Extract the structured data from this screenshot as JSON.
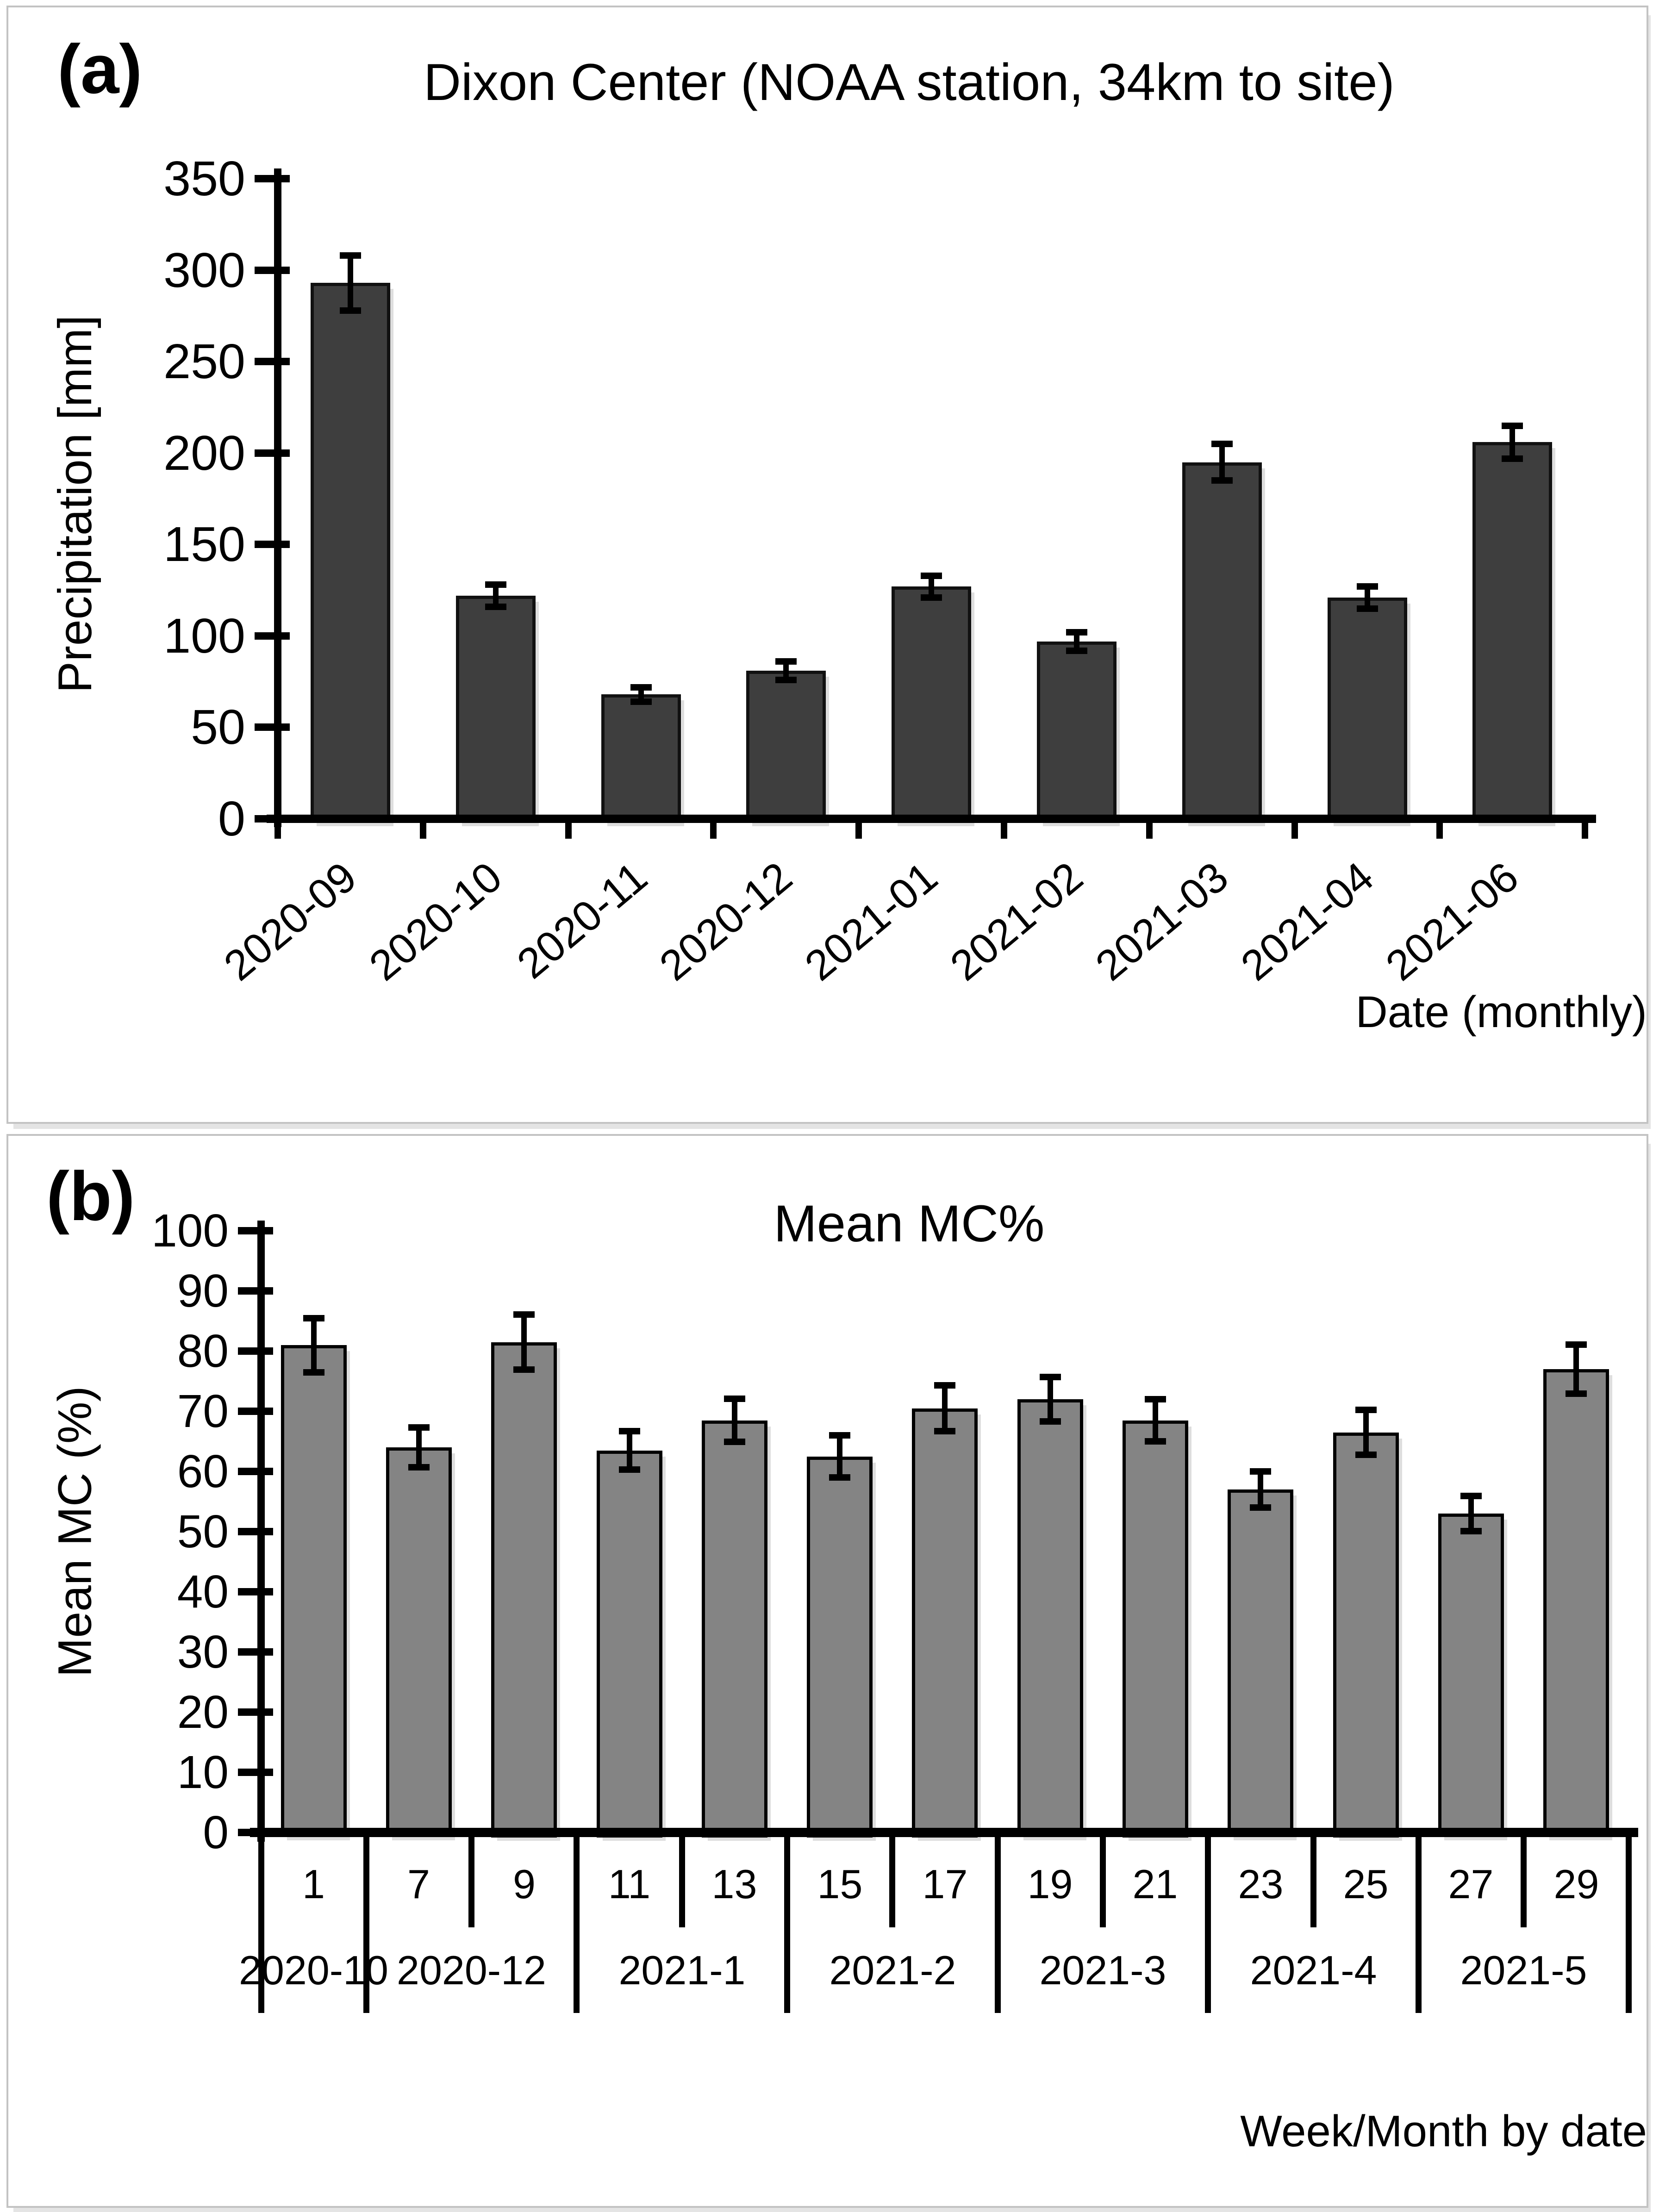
{
  "chart_data": [
    {
      "panel_label": "(a)",
      "type": "bar",
      "title": "Dixon Center (NOAA station, 34km to site)",
      "xlabel": "Date (monthly)",
      "ylabel": "Precipitation [mm]",
      "ylim": [
        0,
        350
      ],
      "ytick_step": 50,
      "ytick_labels": [
        "0",
        "50",
        "100",
        "150",
        "200",
        "250",
        "300",
        "350"
      ],
      "grid": false,
      "legend": "none",
      "categories": [
        "2020-09",
        "2020-10",
        "2020-11",
        "2020-12",
        "2021-01",
        "2021-02",
        "2021-03",
        "2021-04",
        "2021-06"
      ],
      "values": [
        293,
        122,
        68,
        81,
        127,
        97,
        195,
        121,
        206
      ],
      "error_bars": [
        15,
        6,
        4,
        5,
        6,
        5,
        10,
        6,
        9
      ],
      "bar_color": "#3e3e3e",
      "bar_border_color": "#111111",
      "axis_color": "#000000"
    },
    {
      "panel_label": "(b)",
      "type": "bar",
      "title": "Mean MC%",
      "xlabel": "Week/Month by date",
      "ylabel": "Mean MC (%)",
      "ylim": [
        0,
        100
      ],
      "ytick_step": 10,
      "ytick_labels": [
        "0",
        "10",
        "20",
        "30",
        "40",
        "50",
        "60",
        "70",
        "80",
        "90",
        "100"
      ],
      "grid": false,
      "legend": "none",
      "categories": [
        "1",
        "7",
        "9",
        "11",
        "13",
        "15",
        "17",
        "19",
        "21",
        "23",
        "25",
        "27",
        "29"
      ],
      "values": [
        81,
        64,
        81.5,
        63.5,
        68.5,
        62.5,
        70.5,
        72,
        68.5,
        57,
        66.5,
        53,
        77
      ],
      "error_bars": [
        4.5,
        3.3,
        4.6,
        3.2,
        3.6,
        3.5,
        3.8,
        3.7,
        3.5,
        3.0,
        3.7,
        2.9,
        4.1
      ],
      "month_groups": [
        {
          "label": "2020-10",
          "span": 1
        },
        {
          "label": "2020-12",
          "span": 2
        },
        {
          "label": "2021-1",
          "span": 2
        },
        {
          "label": "2021-2",
          "span": 2
        },
        {
          "label": "2021-3",
          "span": 2
        },
        {
          "label": "2021-4",
          "span": 2
        },
        {
          "label": "2021-5",
          "span": 2
        }
      ],
      "bar_color": "#848484",
      "bar_border_color": "#000000",
      "axis_color": "#000000"
    }
  ]
}
